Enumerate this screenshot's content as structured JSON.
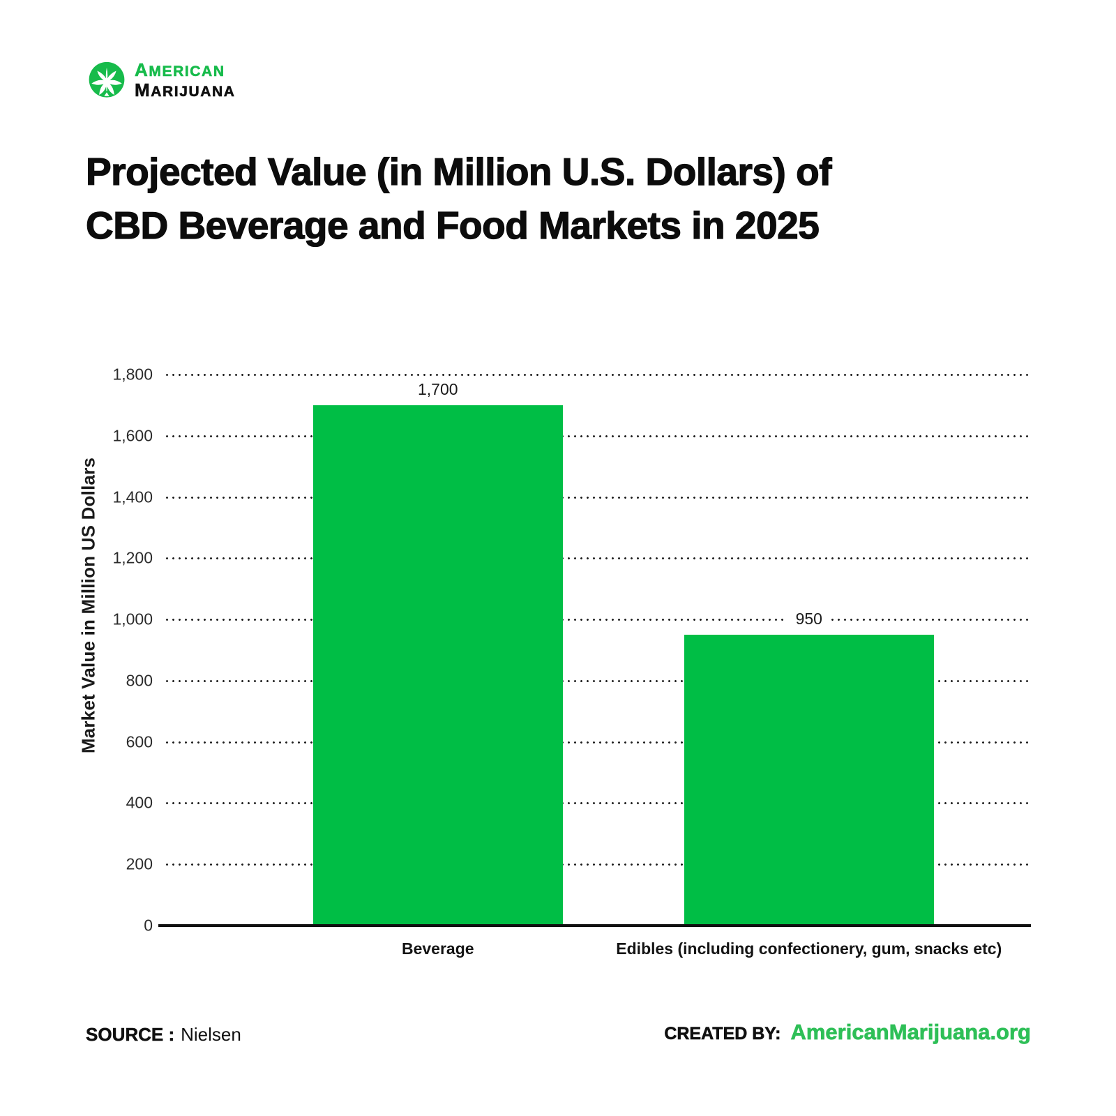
{
  "logo": {
    "word1": "American",
    "word2": "Marijuana"
  },
  "title": {
    "line1": "Projected Value (in Million U.S. Dollars) of",
    "line2": "CBD Beverage and Food Markets in 2025"
  },
  "chart_data": {
    "type": "bar",
    "title": "Projected Value (in Million U.S. Dollars) of CBD Beverage and Food Markets in 2025",
    "categories": [
      "Beverage",
      "Edibles (including confectionery, gum, snacks etc)"
    ],
    "values": [
      1700,
      950
    ],
    "value_labels": [
      "1,700",
      "950"
    ],
    "xlabel": "",
    "ylabel": "Market Value in Million US Dollars",
    "ylim": [
      0,
      1800
    ],
    "ytick_step": 200,
    "yticks": [
      "1,800",
      "1,600",
      "1,400",
      "1,200",
      "1,000",
      "800",
      "600",
      "400",
      "200",
      "0"
    ],
    "grid": "horizontal-dotted",
    "legend": "none",
    "bar_color": "#00be45"
  },
  "footer": {
    "source_label": "SOURCE :",
    "source_value": "Nielsen",
    "created_by_label": "CREATED BY:",
    "created_by_value": "AmericanMarijuana.org"
  },
  "colors": {
    "bar_green": "#00be45",
    "logo_green": "#17bb4b",
    "link_green": "#2ebf57",
    "text_black": "#101010"
  }
}
